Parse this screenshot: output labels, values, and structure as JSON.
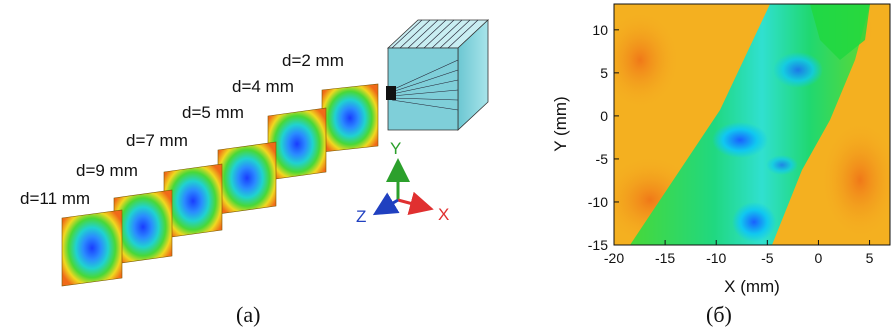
{
  "panel_a": {
    "caption": "(a)",
    "planes": [
      {
        "label": "d=2 mm"
      },
      {
        "label": "d=4 mm"
      },
      {
        "label": "d=5 mm"
      },
      {
        "label": "d=7 mm"
      },
      {
        "label": "d=9 mm"
      },
      {
        "label": "d=11 mm"
      }
    ],
    "axes": {
      "x": "X",
      "y": "Y",
      "z": "Z"
    },
    "colors": {
      "x_axis": "#e03030",
      "y_axis": "#2ca02c",
      "z_axis": "#2040c0",
      "prism": "#8fd3dc"
    }
  },
  "panel_b": {
    "caption": "(б)",
    "chart_data": {
      "type": "heatmap",
      "xlabel": "X (mm)",
      "ylabel": "Y (mm)",
      "xlim": [
        -20,
        7
      ],
      "ylim": [
        -15,
        13
      ],
      "xticks": [
        -20,
        -15,
        -10,
        -5,
        0,
        5
      ],
      "yticks": [
        -15,
        -10,
        -5,
        0,
        5,
        10
      ],
      "colors": {
        "low": "#00e0f0",
        "mid": "#20d040",
        "high": "#f4b020",
        "max": "#f07a18"
      }
    }
  }
}
